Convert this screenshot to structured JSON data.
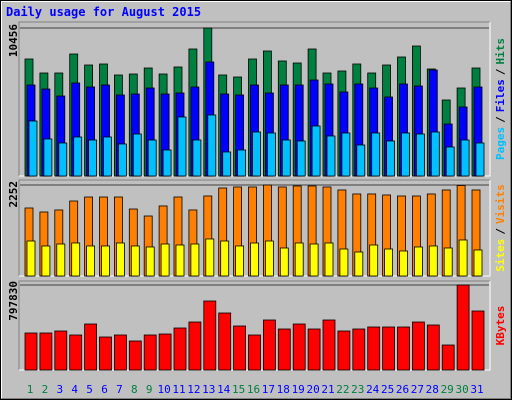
{
  "chart_data": [
    {
      "type": "bar",
      "title": "Daily usage for August 2015",
      "legend_separator": "/",
      "ylim": [
        0,
        10456
      ],
      "yticks": [
        10456
      ],
      "series": [
        {
          "name": "Hits",
          "color": "#008040",
          "values": [
            8266,
            7277,
            7277,
            8619,
            7842,
            7913,
            7136,
            7206,
            7630,
            7206,
            7701,
            8973,
            10456,
            7136,
            6994,
            8266,
            8831,
            8125,
            7983,
            8973,
            7277,
            7418,
            7913,
            7277,
            7842,
            8407,
            9184,
            7560,
            5369,
            6217,
            7630
          ]
        },
        {
          "name": "Files",
          "color": "#0000ff",
          "values": [
            6429,
            6147,
            5652,
            6570,
            6288,
            6429,
            5723,
            5793,
            6217,
            5793,
            5864,
            6288,
            8054,
            5793,
            5723,
            6429,
            5864,
            6429,
            6429,
            6782,
            6500,
            5935,
            6500,
            6217,
            5581,
            6500,
            6359,
            7489,
            3674,
            4875,
            6288
          ]
        },
        {
          "name": "Pages",
          "color": "#00c0ff",
          "values": [
            3886,
            2614,
            2331,
            2755,
            2543,
            2755,
            2261,
            2967,
            2543,
            1837,
            4168,
            2543,
            4310,
            1696,
            1837,
            3109,
            3038,
            2543,
            2473,
            3533,
            2826,
            3038,
            2190,
            3038,
            2473,
            3038,
            2967,
            3109,
            2049,
            2543,
            2331
          ]
        }
      ]
    },
    {
      "type": "bar",
      "legend_separator": "/",
      "ylim": [
        0,
        2252
      ],
      "yticks": [
        2252
      ],
      "series": [
        {
          "name": "Visits",
          "color": "#ff8000",
          "values": [
            1683,
            1584,
            1634,
            1856,
            1955,
            1955,
            1955,
            1658,
            1485,
            1733,
            1955,
            1634,
            1980,
            2178,
            2203,
            2203,
            2252,
            2203,
            2228,
            2228,
            2203,
            2129,
            2030,
            2030,
            2005,
            1980,
            1980,
            2030,
            2129,
            2240,
            2129
          ]
        },
        {
          "name": "Sites",
          "color": "#ffff00",
          "values": [
            866,
            743,
            792,
            817,
            743,
            743,
            817,
            743,
            718,
            792,
            767,
            792,
            916,
            866,
            743,
            817,
            866,
            693,
            817,
            792,
            817,
            668,
            594,
            767,
            668,
            619,
            718,
            743,
            693,
            891,
            644
          ]
        }
      ]
    },
    {
      "type": "bar",
      "ylim": [
        0,
        797830
      ],
      "yticks": [
        797830
      ],
      "categories": [
        "1",
        "2",
        "3",
        "4",
        "5",
        "6",
        "7",
        "8",
        "9",
        "10",
        "11",
        "12",
        "13",
        "14",
        "15",
        "16",
        "17",
        "18",
        "19",
        "20",
        "21",
        "22",
        "23",
        "24",
        "25",
        "26",
        "27",
        "28",
        "29",
        "30",
        "31"
      ],
      "category_colors": [
        "#008040",
        "#008040",
        "#0000ff",
        "#0000ff",
        "#0000ff",
        "#0000ff",
        "#0000ff",
        "#008040",
        "#008040",
        "#0000ff",
        "#0000ff",
        "#0000ff",
        "#0000ff",
        "#0000ff",
        "#008040",
        "#008040",
        "#0000ff",
        "#0000ff",
        "#0000ff",
        "#0000ff",
        "#0000ff",
        "#008040",
        "#008040",
        "#0000ff",
        "#0000ff",
        "#0000ff",
        "#0000ff",
        "#0000ff",
        "#008040",
        "#008040",
        "#0000ff"
      ],
      "series": [
        {
          "name": "KBytes",
          "color": "#ff0000",
          "values": [
            347282,
            347282,
            366054,
            328510,
            431756,
            309738,
            328510,
            272194,
            328510,
            337896,
            394212,
            450528,
            647634,
            535002,
            412984,
            328510,
            469300,
            384826,
            431756,
            384826,
            469300,
            366054,
            384826,
            403598,
            403598,
            403598,
            450528,
            422370,
            234650,
            797830,
            553774
          ]
        }
      ]
    }
  ]
}
